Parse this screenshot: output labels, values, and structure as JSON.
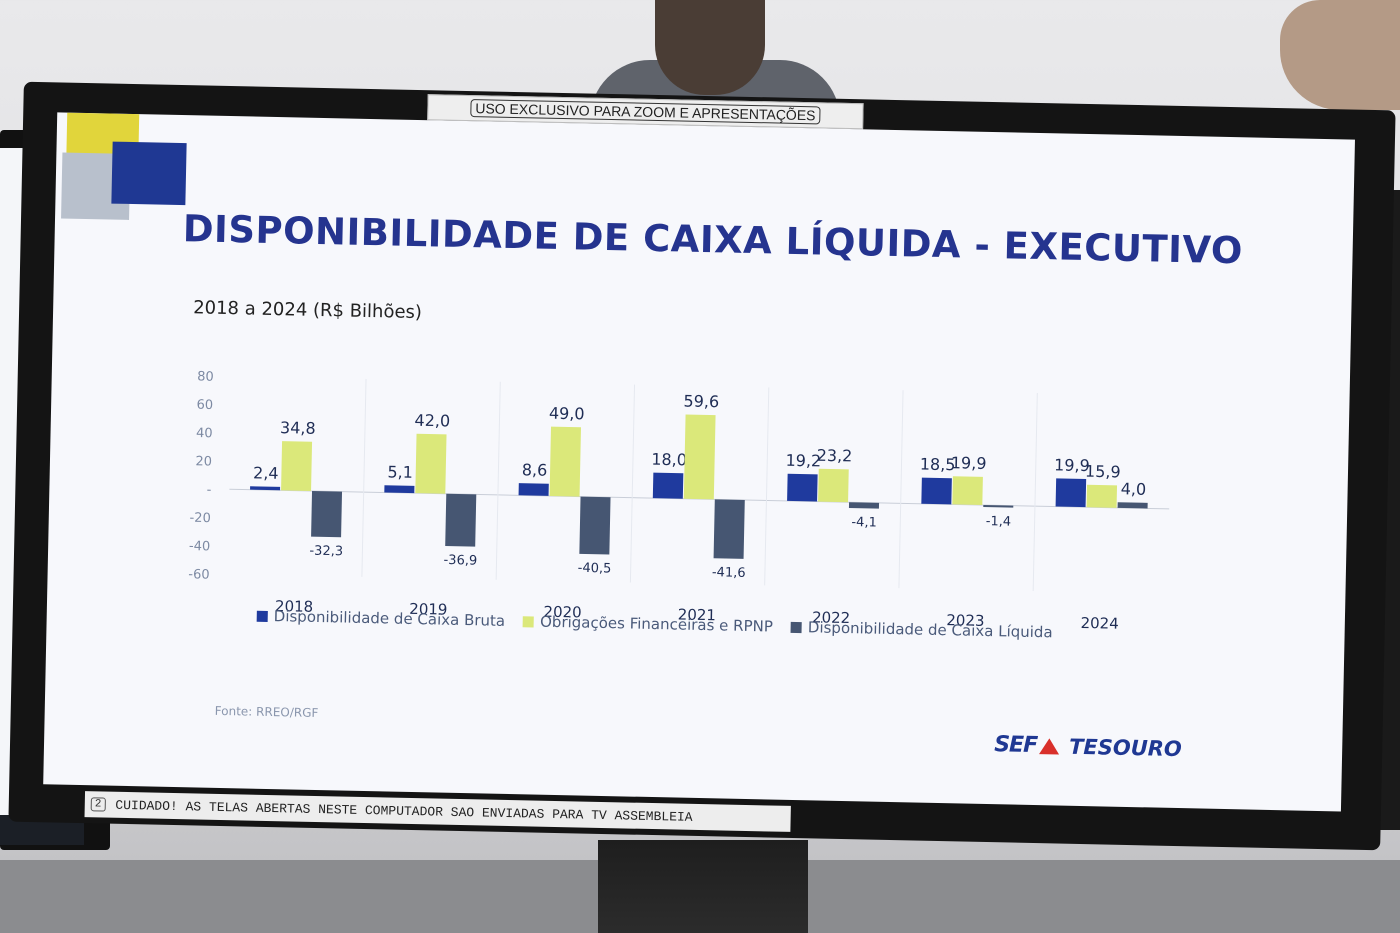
{
  "monitor": {
    "top_sticker": "USO EXCLUSIVO PARA ZOOM E APRESENTAÇÕES",
    "bottom_sticker_number": "2",
    "bottom_sticker_text": "CUIDADO! AS TELAS ABERTAS NESTE COMPUTADOR SAO ENVIADAS PARA TV ASSEMBLEIA"
  },
  "slide": {
    "title": "DISPONIBILIDADE DE CAIXA LÍQUIDA  - EXECUTIVO",
    "subtitle": "2018 a 2024 (R$ Bilhões)",
    "source": "Fonte: RREO/RGF",
    "logo_left": "SEF",
    "logo_right": "TESOURO"
  },
  "chart_data": {
    "type": "bar",
    "categories": [
      "2018",
      "2019",
      "2020",
      "2021",
      "2022",
      "2023",
      "2024"
    ],
    "series": [
      {
        "name": "Disponibilidade de Caixa Bruta",
        "color": "#1f3a9e",
        "values": [
          2.4,
          5.1,
          8.6,
          18.0,
          19.2,
          18.5,
          19.9
        ],
        "labels": [
          "2,4",
          "5,1",
          "8,6",
          "18,0",
          "19,2",
          "18,5",
          "19,9"
        ]
      },
      {
        "name": "Obrigações Financeiras e RPNP",
        "color": "#dbe87a",
        "values": [
          34.8,
          42.0,
          49.0,
          59.6,
          23.2,
          19.9,
          15.9
        ],
        "labels": [
          "34,8",
          "42,0",
          "49,0",
          "59,6",
          "23,2",
          "19,9",
          "15,9"
        ]
      },
      {
        "name": "Disponibilidade de Caixa Líquida",
        "color": "#465672",
        "values": [
          -32.3,
          -36.9,
          -40.5,
          -41.6,
          -4.1,
          -1.4,
          4.0
        ],
        "labels": [
          "-32,3",
          "-36,9",
          "-40,5",
          "-41,6",
          "-4,1",
          "-1,4",
          "4,0"
        ]
      }
    ],
    "ylim": [
      -60,
      80
    ],
    "yticks": [
      80,
      60,
      40,
      20,
      0,
      -20,
      -40,
      -60
    ],
    "ytick_labels": [
      "80",
      "60",
      "40",
      "20",
      "-",
      "-20",
      "-40",
      "-60"
    ],
    "grid": false,
    "legend_position": "bottom"
  }
}
